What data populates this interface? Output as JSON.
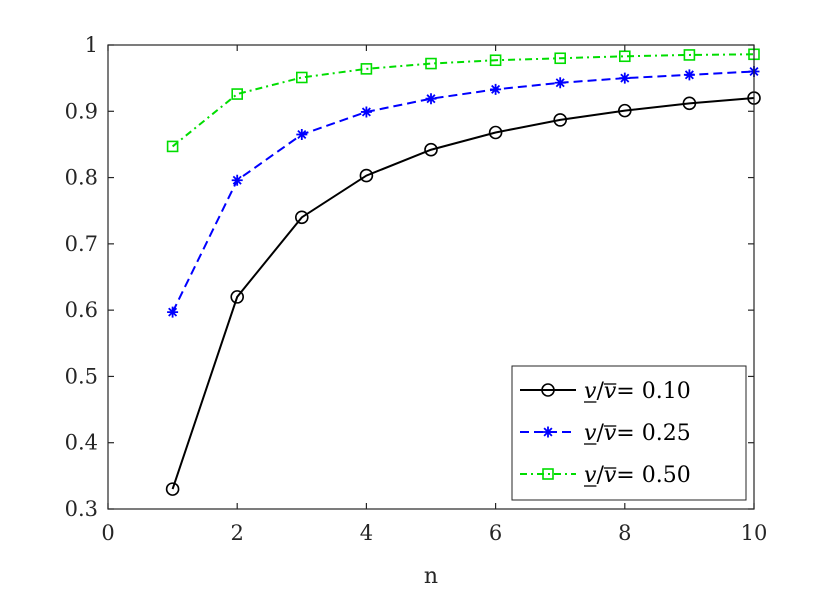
{
  "chart_data": {
    "type": "line",
    "title": "",
    "xlabel": "n",
    "ylabel": "",
    "xlim": [
      0,
      10
    ],
    "ylim": [
      0.3,
      1
    ],
    "xticks": [
      0,
      2,
      4,
      6,
      8,
      10
    ],
    "xtick_labels": [
      "0",
      "2",
      "4",
      "6",
      "8",
      "10"
    ],
    "yticks": [
      0.3,
      0.4,
      0.5,
      0.6,
      0.7,
      0.8,
      0.9,
      1.0
    ],
    "ytick_labels": [
      "0.3",
      "0.4",
      "0.5",
      "0.6",
      "0.7",
      "0.8",
      "0.9",
      "1"
    ],
    "grid": false,
    "legend_position": "bottom-right",
    "x": [
      1,
      2,
      3,
      4,
      5,
      6,
      7,
      8,
      9,
      10
    ],
    "series": [
      {
        "name": "v/v= 0.10",
        "legend_value": "0.10",
        "color": "#000000",
        "line_style": "solid",
        "marker": "circle",
        "values": [
          0.33,
          0.62,
          0.74,
          0.803,
          0.842,
          0.868,
          0.887,
          0.901,
          0.912,
          0.92
        ]
      },
      {
        "name": "v/v= 0.25",
        "legend_value": "0.25",
        "color": "#0000FF",
        "line_style": "dashed",
        "marker": "asterisk",
        "values": [
          0.597,
          0.796,
          0.865,
          0.899,
          0.919,
          0.933,
          0.943,
          0.95,
          0.955,
          0.96
        ]
      },
      {
        "name": "v/v= 0.50",
        "legend_value": "0.50",
        "color": "#00DD00",
        "line_style": "dashdot",
        "marker": "square",
        "values": [
          0.847,
          0.926,
          0.951,
          0.964,
          0.972,
          0.977,
          0.98,
          0.983,
          0.985,
          0.986
        ]
      }
    ]
  }
}
